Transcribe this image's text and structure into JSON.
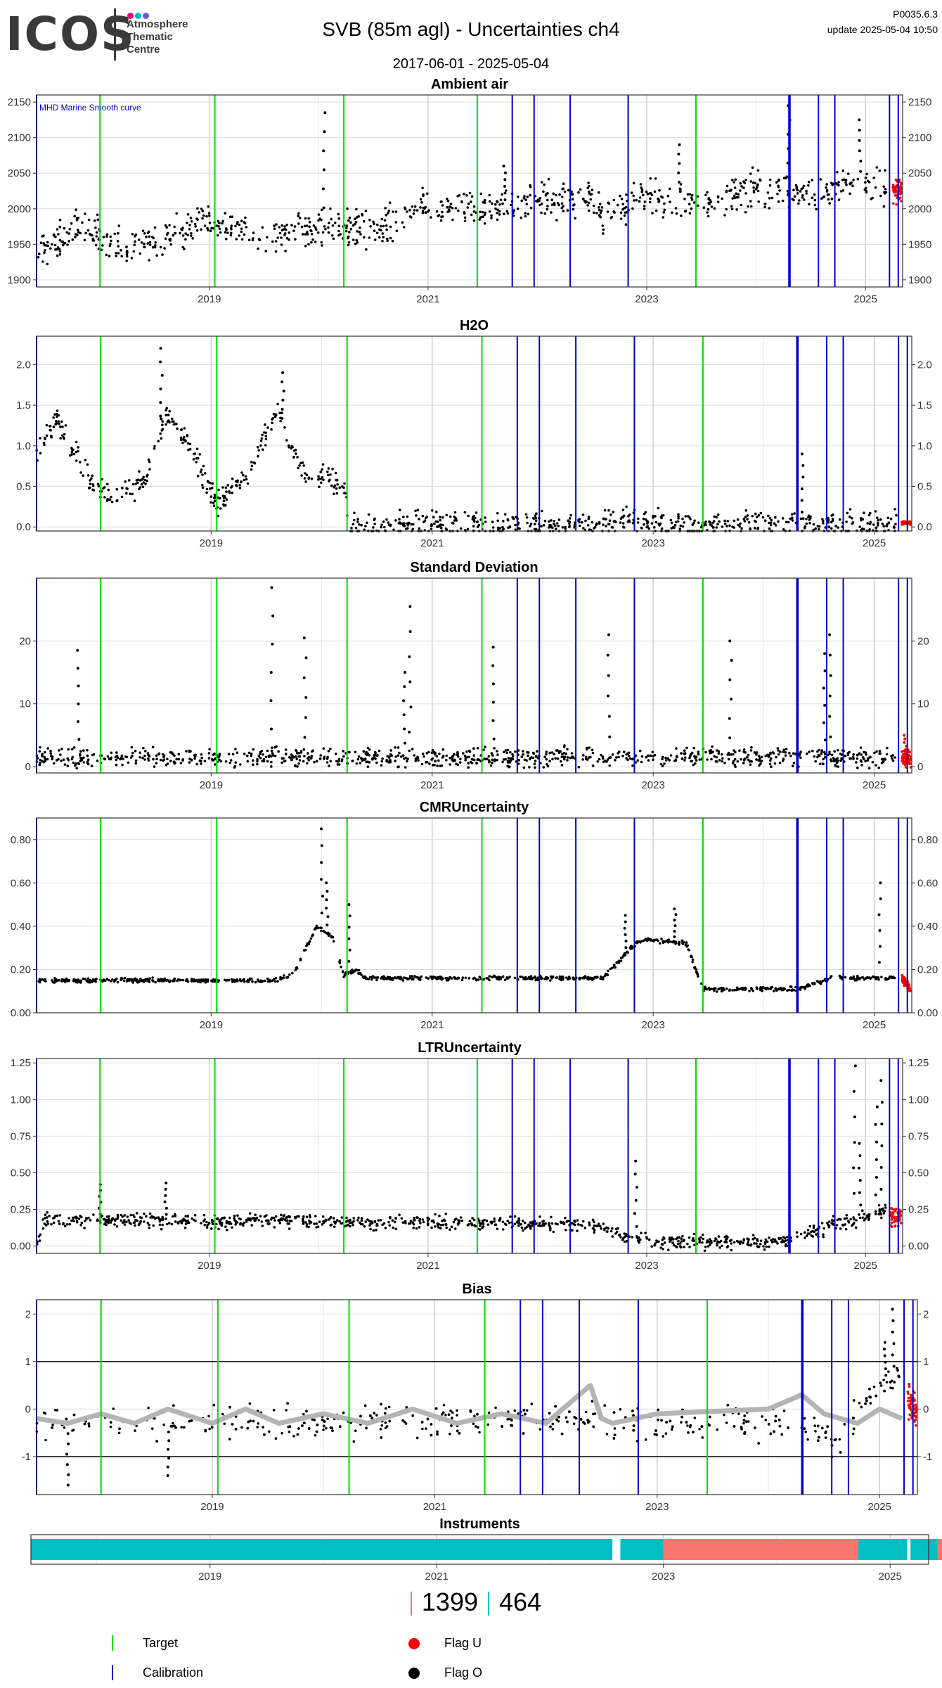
{
  "header": {
    "logo_text": "ICOS",
    "logo_subtitle": [
      "Atmosphere",
      "Thematic",
      "Centre"
    ],
    "title": "SVB  (85m agl) - Uncertainties ch4",
    "date_range": "2017-06-01 - 2025-05-04",
    "version": "P0035.6.3",
    "update": "update  2025-05-04 10:50"
  },
  "colors": {
    "target": "#00dd00",
    "calibration": "#0000cc",
    "flag_u": "#ff0000",
    "flag_o": "#000000",
    "smooth": "#b4b4b4",
    "instrument_a": "#f8766d",
    "instrument_b": "#00bfc4",
    "logo_dots": [
      "#e6007e",
      "#00b2e3",
      "#6a5acd"
    ]
  },
  "events": {
    "target": [
      2017.42,
      2018.0,
      2019.05,
      2020.23,
      2021.45,
      2023.45
    ],
    "calibration": [
      2017.42,
      2021.77,
      2021.97,
      2022.3,
      2022.83,
      2024.3,
      2024.31,
      2024.57,
      2024.72,
      2025.22,
      2025.3
    ]
  },
  "chart_data": [
    {
      "type": "scatter",
      "title": "Ambient air",
      "annotation": "MHD Marine Smooth curve",
      "xlim": [
        2017.42,
        2025.34
      ],
      "ylim": [
        1890,
        2160
      ],
      "yticks": [
        1900,
        1950,
        2000,
        2050,
        2100,
        2150
      ],
      "xticks": [
        2019,
        2021,
        2023,
        2025
      ],
      "series": [
        {
          "flag": "O",
          "trend": [
            [
              2017.42,
              1935
            ],
            [
              2017.8,
              1975
            ],
            [
              2018.2,
              1945
            ],
            [
              2018.5,
              1950
            ],
            [
              2019.0,
              1985
            ],
            [
              2019.5,
              1960
            ],
            [
              2020.0,
              1975
            ],
            [
              2020.5,
              1970
            ],
            [
              2021.0,
              2005
            ],
            [
              2021.5,
              1995
            ],
            [
              2022.0,
              2015
            ],
            [
              2022.5,
              2015
            ],
            [
              2022.6,
              1990
            ],
            [
              2023.0,
              2020
            ],
            [
              2023.5,
              2005
            ],
            [
              2024.0,
              2030
            ],
            [
              2024.5,
              2020
            ],
            [
              2025.0,
              2040
            ],
            [
              2025.2,
              2030
            ]
          ],
          "spread": 25,
          "spikes": [
            [
              2020.05,
              2135
            ],
            [
              2024.3,
              2145
            ],
            [
              2024.95,
              2125
            ],
            [
              2021.7,
              2060
            ],
            [
              2023.3,
              2090
            ]
          ]
        },
        {
          "flag": "U",
          "trend": [
            [
              2025.25,
              2025
            ],
            [
              2025.33,
              2025
            ]
          ],
          "spread": 15,
          "spikes": []
        }
      ]
    },
    {
      "type": "scatter",
      "title": "H2O",
      "xlim": [
        2017.42,
        2025.34
      ],
      "ylim": [
        -0.05,
        2.35
      ],
      "yticks": [
        0.0,
        0.5,
        1.0,
        1.5,
        2.0
      ],
      "xticks": [
        2019,
        2021,
        2023,
        2025
      ],
      "series": [
        {
          "flag": "O",
          "trend": [
            [
              2017.42,
              0.9
            ],
            [
              2017.6,
              1.3
            ],
            [
              2017.9,
              0.6
            ],
            [
              2018.1,
              0.3
            ],
            [
              2018.4,
              0.6
            ],
            [
              2018.6,
              1.4
            ],
            [
              2018.8,
              1.0
            ],
            [
              2019.05,
              0.3
            ],
            [
              2019.3,
              0.6
            ],
            [
              2019.6,
              1.4
            ],
            [
              2019.8,
              0.7
            ],
            [
              2020.2,
              0.5
            ],
            [
              2020.25,
              0.04
            ],
            [
              2022.4,
              0.04
            ],
            [
              2022.5,
              0.05
            ],
            [
              2022.8,
              0.1
            ],
            [
              2023.0,
              0.05
            ],
            [
              2024.3,
              0.04
            ],
            [
              2025.2,
              0.04
            ]
          ],
          "spread": 0.15,
          "spikes": [
            [
              2018.55,
              2.2
            ],
            [
              2019.65,
              1.9
            ],
            [
              2024.35,
              0.9
            ]
          ]
        },
        {
          "flag": "U",
          "trend": [
            [
              2025.25,
              0.05
            ],
            [
              2025.33,
              0.05
            ]
          ],
          "spread": 0.02,
          "spikes": []
        }
      ]
    },
    {
      "type": "scatter",
      "title": "Standard Deviation",
      "xlim": [
        2017.42,
        2025.34
      ],
      "ylim": [
        -1,
        30
      ],
      "yticks": [
        0,
        10,
        20
      ],
      "xticks": [
        2019,
        2021,
        2023,
        2025
      ],
      "series": [
        {
          "flag": "O",
          "trend": [
            [
              2017.42,
              1.5
            ],
            [
              2022.5,
              1.5
            ],
            [
              2022.55,
              1.5
            ],
            [
              2025.2,
              1.5
            ]
          ],
          "spread": 1.5,
          "spikes": [
            [
              2019.55,
              28.5
            ],
            [
              2020.8,
              25.5
            ],
            [
              2017.8,
              18.5
            ],
            [
              2022.6,
              21
            ],
            [
              2023.7,
              20
            ],
            [
              2024.6,
              21
            ],
            [
              2019.85,
              20.5
            ],
            [
              2021.55,
              19
            ],
            [
              2024.55,
              18
            ],
            [
              2020.75,
              15
            ]
          ]
        },
        {
          "flag": "U",
          "trend": [
            [
              2025.25,
              1.5
            ],
            [
              2025.33,
              1.5
            ]
          ],
          "spread": 1.5,
          "spikes": [
            [
              2025.28,
              5
            ]
          ]
        }
      ]
    },
    {
      "type": "scatter",
      "title": "CMRUncertainty",
      "xlim": [
        2017.42,
        2025.34
      ],
      "ylim": [
        0,
        0.9
      ],
      "yticks": [
        0.0,
        0.2,
        0.4,
        0.6,
        0.8
      ],
      "xticks": [
        2019,
        2021,
        2023,
        2025
      ],
      "series": [
        {
          "flag": "O",
          "trend": [
            [
              2017.42,
              0.15
            ],
            [
              2019.6,
              0.15
            ],
            [
              2019.75,
              0.18
            ],
            [
              2019.95,
              0.4
            ],
            [
              2020.1,
              0.35
            ],
            [
              2020.2,
              0.17
            ],
            [
              2020.3,
              0.2
            ],
            [
              2020.4,
              0.16
            ],
            [
              2022.55,
              0.16
            ],
            [
              2022.8,
              0.3
            ],
            [
              2022.9,
              0.34
            ],
            [
              2023.3,
              0.32
            ],
            [
              2023.45,
              0.11
            ],
            [
              2024.3,
              0.11
            ],
            [
              2024.6,
              0.16
            ],
            [
              2025.2,
              0.16
            ]
          ],
          "spread": 0.01,
          "spikes": [
            [
              2020.0,
              0.85
            ],
            [
              2020.05,
              0.6
            ],
            [
              2020.25,
              0.5
            ],
            [
              2025.05,
              0.6
            ],
            [
              2022.75,
              0.45
            ],
            [
              2023.2,
              0.48
            ]
          ]
        },
        {
          "flag": "U",
          "trend": [
            [
              2025.25,
              0.16
            ],
            [
              2025.33,
              0.11
            ]
          ],
          "spread": 0.02,
          "spikes": []
        }
      ]
    },
    {
      "type": "scatter",
      "title": "LTRUncertainty",
      "xlim": [
        2017.42,
        2025.34
      ],
      "ylim": [
        -0.05,
        1.28
      ],
      "yticks": [
        0.0,
        0.25,
        0.5,
        0.75,
        1.0,
        1.25
      ],
      "xticks": [
        2019,
        2021,
        2023,
        2025
      ],
      "series": [
        {
          "flag": "O",
          "trend": [
            [
              2017.42,
              0.02
            ],
            [
              2017.5,
              0.18
            ],
            [
              2022.4,
              0.15
            ],
            [
              2022.55,
              0.15
            ],
            [
              2022.85,
              0.05
            ],
            [
              2023.0,
              0.03
            ],
            [
              2024.3,
              0.03
            ],
            [
              2024.6,
              0.12
            ],
            [
              2025.2,
              0.25
            ]
          ],
          "spread": 0.05,
          "spikes": [
            [
              2024.9,
              1.23
            ],
            [
              2025.15,
              1.13
            ],
            [
              2025.1,
              0.95
            ],
            [
              2024.95,
              0.7
            ],
            [
              2022.9,
              0.58
            ],
            [
              2018.0,
              0.42
            ],
            [
              2018.6,
              0.43
            ]
          ]
        },
        {
          "flag": "U",
          "trend": [
            [
              2025.22,
              0.2
            ],
            [
              2025.33,
              0.2
            ]
          ],
          "spread": 0.06,
          "spikes": []
        }
      ]
    },
    {
      "type": "scatter",
      "title": "Bias",
      "xlim": [
        2017.42,
        2025.34
      ],
      "ylim": [
        -1.8,
        2.3
      ],
      "yticks": [
        -1,
        0,
        1,
        2
      ],
      "xticks": [
        2019,
        2021,
        2023,
        2025
      ],
      "hlines": [
        -1,
        1
      ],
      "smooth": [
        [
          2017.42,
          -0.2
        ],
        [
          2017.7,
          -0.3
        ],
        [
          2018.0,
          -0.1
        ],
        [
          2018.3,
          -0.3
        ],
        [
          2018.6,
          0.0
        ],
        [
          2019.0,
          -0.3
        ],
        [
          2019.3,
          0.0
        ],
        [
          2019.6,
          -0.3
        ],
        [
          2020.0,
          -0.1
        ],
        [
          2020.4,
          -0.3
        ],
        [
          2020.8,
          0.0
        ],
        [
          2021.2,
          -0.3
        ],
        [
          2021.6,
          -0.1
        ],
        [
          2022.0,
          -0.3
        ],
        [
          2022.4,
          0.5
        ],
        [
          2022.5,
          -0.2
        ],
        [
          2022.6,
          -0.3
        ],
        [
          2023.0,
          -0.1
        ],
        [
          2024.0,
          0.0
        ],
        [
          2024.3,
          0.3
        ],
        [
          2024.5,
          -0.1
        ],
        [
          2024.8,
          -0.3
        ],
        [
          2025.0,
          0.0
        ],
        [
          2025.2,
          -0.2
        ]
      ],
      "series": [
        {
          "flag": "O",
          "trend": [
            [
              2017.42,
              -0.3
            ],
            [
              2018.5,
              -0.3
            ],
            [
              2020.5,
              -0.3
            ],
            [
              2022.4,
              -0.2
            ],
            [
              2022.6,
              -0.3
            ],
            [
              2024.3,
              -0.3
            ],
            [
              2024.65,
              -0.8
            ],
            [
              2024.75,
              -0.2
            ],
            [
              2025.1,
              0.7
            ],
            [
              2025.2,
              0.5
            ]
          ],
          "spread": 0.35,
          "spikes": [
            [
              2017.7,
              -1.6
            ],
            [
              2018.6,
              -1.4
            ],
            [
              2025.12,
              2.1
            ],
            [
              2025.05,
              1.4
            ]
          ]
        },
        {
          "flag": "U",
          "trend": [
            [
              2025.25,
              0.2
            ],
            [
              2025.33,
              -0.1
            ]
          ],
          "spread": 0.35,
          "spikes": []
        }
      ]
    },
    {
      "type": "bar",
      "title": "Instruments",
      "xlim": [
        2017.42,
        2025.34
      ],
      "xticks": [
        2019,
        2021,
        2023,
        2025
      ],
      "segments": [
        {
          "instrument": "464",
          "start": 2017.42,
          "end": 2022.55
        },
        {
          "instrument": "464",
          "start": 2022.62,
          "end": 2023.0
        },
        {
          "instrument": "1399",
          "start": 2023.0,
          "end": 2024.72
        },
        {
          "instrument": "464",
          "start": 2024.72,
          "end": 2025.15
        },
        {
          "instrument": "464",
          "start": 2025.18,
          "end": 2025.42
        },
        {
          "instrument": "1399",
          "start": 2025.42,
          "end": 2025.46
        }
      ]
    }
  ],
  "instrument_counts": [
    {
      "label": "1399"
    },
    {
      "label": "464"
    }
  ],
  "legend": {
    "target": "Target",
    "calibration": "Calibration",
    "flag_u": "Flag U",
    "flag_o": "Flag O"
  }
}
